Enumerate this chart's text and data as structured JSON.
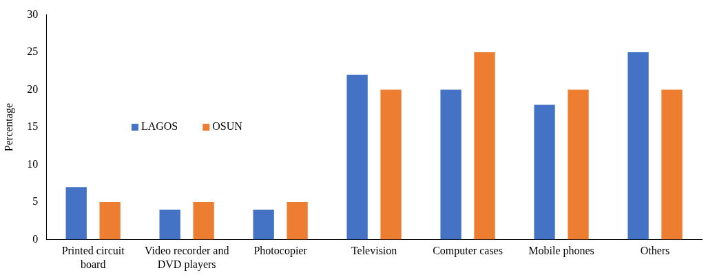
{
  "chart_data": {
    "type": "bar",
    "ylabel": "Percentage",
    "categories": [
      "Printed circuit board",
      "Video recorder and DVD players",
      "Photocopier",
      "Television",
      "Computer cases",
      "Mobile phones",
      "Others"
    ],
    "series": [
      {
        "name": "LAGOS",
        "color": "#4472c4",
        "values": [
          7,
          4,
          4,
          22,
          20,
          18,
          25
        ]
      },
      {
        "name": "OSUN",
        "color": "#ed7d31",
        "values": [
          5,
          5,
          5,
          20,
          25,
          20,
          20
        ]
      }
    ],
    "ylim": [
      0,
      30
    ],
    "yticks": [
      0,
      5,
      10,
      15,
      20,
      25,
      30
    ],
    "grid": false,
    "legend": "left"
  }
}
